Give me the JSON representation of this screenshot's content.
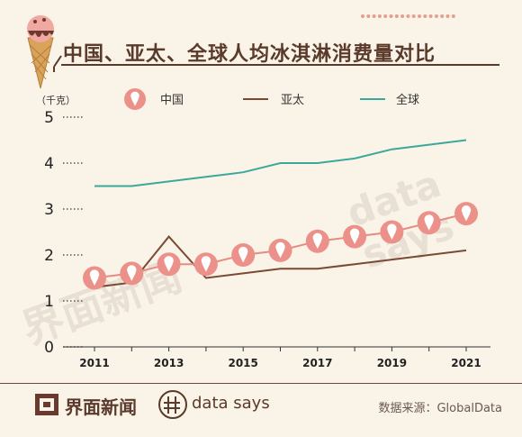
{
  "header": {
    "title": "中国、亚太、全球人均冰淇淋消费量对比"
  },
  "chart_data": {
    "type": "line",
    "ylabel": "（千克）",
    "ylim": [
      0,
      5
    ],
    "yticks": [
      "0",
      "1",
      "2",
      "3",
      "4",
      "5"
    ],
    "x": [
      2011,
      2012,
      2013,
      2014,
      2015,
      2016,
      2017,
      2018,
      2019,
      2020,
      2021
    ],
    "xtick_labels": [
      "2011",
      "2013",
      "2015",
      "2017",
      "2019",
      "2021"
    ],
    "series": [
      {
        "name": "中国",
        "color": "#e88a84",
        "marker": "ice-cream-icon",
        "values": [
          1.5,
          1.6,
          1.8,
          1.8,
          2.0,
          2.1,
          2.3,
          2.4,
          2.5,
          2.7,
          2.9
        ]
      },
      {
        "name": "亚太",
        "color": "#7a4a35",
        "values": [
          1.3,
          1.4,
          2.4,
          1.5,
          1.6,
          1.7,
          1.7,
          1.8,
          1.9,
          2.0,
          2.1
        ]
      },
      {
        "name": "全球",
        "color": "#3aa99c",
        "values": [
          3.5,
          3.5,
          3.6,
          3.7,
          3.8,
          4.0,
          4.0,
          4.1,
          4.3,
          4.4,
          4.5
        ]
      }
    ],
    "grid": false,
    "legend": "top"
  },
  "footer": {
    "brand_cn": "界面新闻",
    "brand_ds": "data says",
    "source": "数据来源：GlobalData"
  },
  "watermark": {
    "cn": "界面新闻",
    "ds": "data says"
  }
}
